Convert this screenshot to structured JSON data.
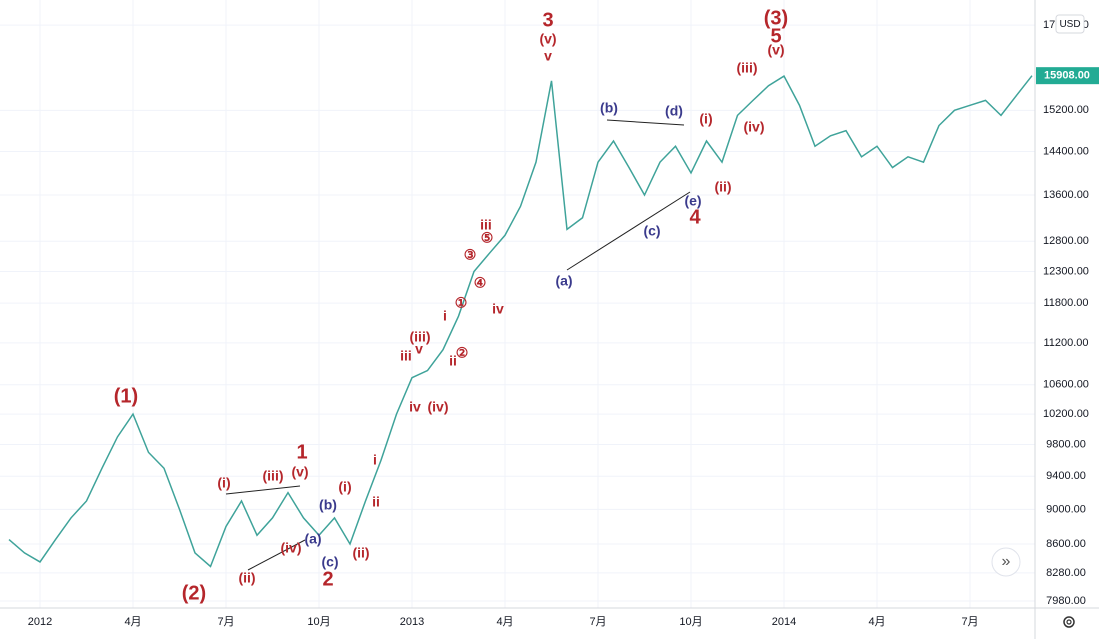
{
  "chart_data": {
    "type": "line",
    "currency": "USD",
    "categories": [
      null,
      null,
      "2012",
      null,
      null,
      null,
      null,
      null,
      "4月",
      null,
      null,
      null,
      null,
      null,
      "7月",
      null,
      null,
      null,
      null,
      null,
      "10月",
      null,
      null,
      null,
      null,
      null,
      "2013",
      null,
      null,
      null,
      null,
      null,
      "4月",
      null,
      null,
      null,
      null,
      null,
      "7月",
      null,
      null,
      null,
      null,
      null,
      "10月",
      null,
      null,
      null,
      null,
      null,
      "2014",
      null,
      null,
      null,
      null,
      null,
      "4月",
      null,
      null,
      null,
      null,
      null,
      "7月",
      null,
      null,
      null,
      null
    ],
    "values": [
      8650,
      8500,
      8400,
      8650,
      8900,
      9100,
      9500,
      9900,
      10200,
      9700,
      9500,
      9000,
      8500,
      8350,
      8800,
      9100,
      8700,
      8900,
      9200,
      8900,
      8700,
      8900,
      8600,
      9100,
      9600,
      10200,
      10700,
      10800,
      11100,
      11600,
      12300,
      12600,
      12900,
      13400,
      14200,
      15800,
      13000,
      13200,
      14200,
      14600,
      14100,
      13600,
      14200,
      14500,
      14000,
      14600,
      14200,
      15100,
      15400,
      15700,
      15900,
      15300,
      14500,
      14700,
      14800,
      14300,
      14500,
      14100,
      14300,
      14200,
      14900,
      15200,
      15300,
      15400,
      15100,
      15500,
      15908
    ],
    "color": "#3fa39a",
    "log_scale": true,
    "grid": true,
    "ylim": [
      7907,
      17570
    ],
    "yticks": [
      {
        "value": 7980,
        "label": "7980.00"
      },
      {
        "value": 8280,
        "label": "8280.00"
      },
      {
        "value": 8600,
        "label": "8600.00"
      },
      {
        "value": 9000,
        "label": "9000.00"
      },
      {
        "value": 9400,
        "label": "9400.00"
      },
      {
        "value": 9800,
        "label": "9800.00"
      },
      {
        "value": 10200,
        "label": "10200.00"
      },
      {
        "value": 10600,
        "label": "10600.00"
      },
      {
        "value": 11200,
        "label": "11200.00"
      },
      {
        "value": 11800,
        "label": "11800.00"
      },
      {
        "value": 12300,
        "label": "12300.00"
      },
      {
        "value": 12800,
        "label": "12800.00"
      },
      {
        "value": 13600,
        "label": "13600.00"
      },
      {
        "value": 14400,
        "label": "14400.00"
      },
      {
        "value": 15200,
        "label": "15200.00"
      },
      {
        "value": 17000,
        "label": "17000.00"
      }
    ],
    "last_price": {
      "value": 15908,
      "label": "15908.00",
      "color": "#22ab94"
    },
    "wave_labels": {
      "color": "#b5262b",
      "texts": [
        "(1)",
        "(2)",
        "(i)",
        "(ii)",
        "(iii)",
        "(iv)",
        "(v)",
        "1",
        "(i)",
        "(ii)",
        "2",
        "i",
        "ii",
        "iii",
        "iv",
        "(iii)",
        "v",
        "(iv)",
        "ii",
        "i",
        "①",
        "②",
        "③",
        "④",
        "⑤",
        "iii",
        "iv",
        "3",
        "(v)",
        "v",
        "(i)",
        "(ii)",
        "4",
        "(iii)",
        "(iv)",
        "(v)",
        "5",
        "(3)"
      ]
    },
    "corrective_labels": {
      "color": "#3a3a8c",
      "texts": [
        "(b)",
        "(a)",
        "(c)",
        "(a)",
        "(b)",
        "(d)",
        "(c)",
        "(e)"
      ]
    }
  }
}
